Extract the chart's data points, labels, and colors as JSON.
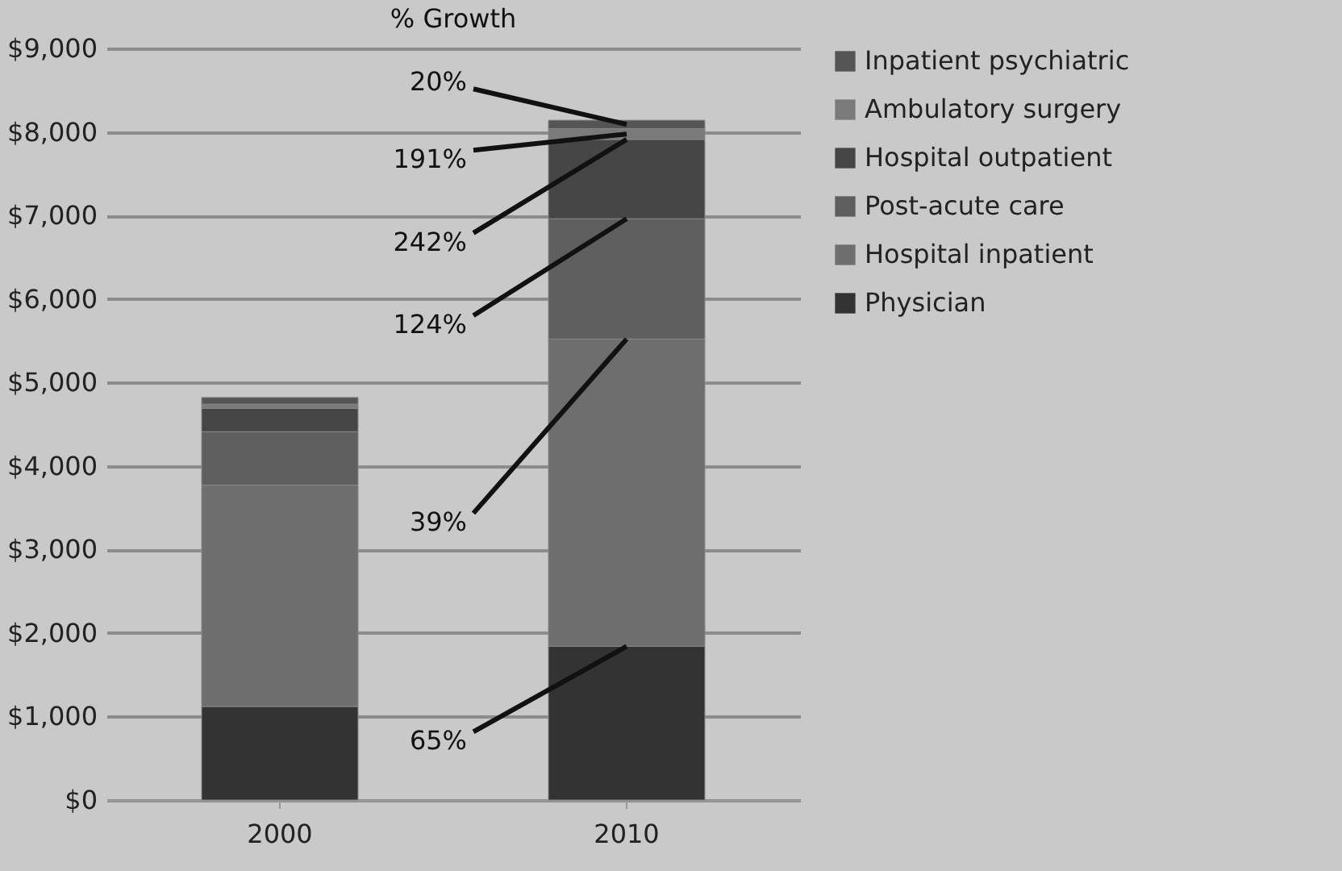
{
  "chart_data": {
    "type": "bar",
    "title": "% Growth",
    "stacked": true,
    "categories": [
      "2000",
      "2010"
    ],
    "series": [
      {
        "name": "Physician",
        "color": "#333333",
        "values": [
          1120,
          1840
        ]
      },
      {
        "name": "Hospital inpatient",
        "color": "#6e6e6e",
        "values": [
          2650,
          3680
        ]
      },
      {
        "name": "Post-acute care",
        "color": "#5f5f5f",
        "values": [
          640,
          1440
        ]
      },
      {
        "name": "Hospital outpatient",
        "color": "#464646",
        "values": [
          280,
          950
        ]
      },
      {
        "name": "Ambulatory surgery",
        "color": "#7a7a7a",
        "values": [
          50,
          130
        ]
      },
      {
        "name": "Inpatient psychiatric",
        "color": "#555555",
        "values": [
          80,
          100
        ]
      }
    ],
    "ylim": [
      0,
      9000
    ],
    "yticks": [
      {
        "value": 0,
        "label": "$0"
      },
      {
        "value": 1000,
        "label": "$1,000"
      },
      {
        "value": 2000,
        "label": "$2,000"
      },
      {
        "value": 3000,
        "label": "$3,000"
      },
      {
        "value": 4000,
        "label": "$4,000"
      },
      {
        "value": 5000,
        "label": "$5,000"
      },
      {
        "value": 6000,
        "label": "$6,000"
      },
      {
        "value": 7000,
        "label": "$7,000"
      },
      {
        "value": 8000,
        "label": "$8,000"
      },
      {
        "value": 9000,
        "label": "$9,000"
      }
    ],
    "grid": "y",
    "legend": "right",
    "annotations": [
      {
        "text": "20%",
        "x": "2010",
        "y": 8090
      },
      {
        "text": "191%",
        "x": "2010",
        "y": 7975
      },
      {
        "text": "242%",
        "x": "2010",
        "y": 7910
      },
      {
        "text": "124%",
        "x": "2010",
        "y": 6960
      },
      {
        "text": "39%",
        "x": "2010",
        "y": 5520
      },
      {
        "text": "65%",
        "x": "2010",
        "y": 1840
      }
    ]
  }
}
